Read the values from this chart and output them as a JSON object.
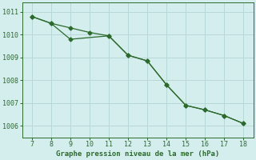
{
  "line1_x": [
    7,
    8,
    9,
    10,
    11,
    12,
    13,
    14,
    15,
    16,
    17,
    18
  ],
  "line1_y": [
    1010.8,
    1010.5,
    1010.3,
    1010.1,
    1009.95,
    1009.1,
    1008.85,
    1007.8,
    1006.9,
    1006.7,
    1006.45,
    1006.1
  ],
  "line2_x": [
    7,
    8,
    9,
    11,
    12,
    13,
    14,
    15,
    16,
    17,
    18
  ],
  "line2_y": [
    1010.8,
    1010.5,
    1009.8,
    1009.95,
    1009.1,
    1008.85,
    1007.8,
    1006.9,
    1006.7,
    1006.45,
    1006.1
  ],
  "line_color": "#2d6a2d",
  "bg_color": "#d4eeee",
  "grid_color": "#b8d8d8",
  "xlabel": "Graphe pression niveau de la mer (hPa)",
  "xlabel_color": "#2d6a2d",
  "tick_color": "#2d6a2d",
  "xlim": [
    6.5,
    18.5
  ],
  "ylim": [
    1005.5,
    1011.4
  ],
  "xticks": [
    7,
    8,
    9,
    10,
    11,
    12,
    13,
    14,
    15,
    16,
    17,
    18
  ],
  "yticks": [
    1006,
    1007,
    1008,
    1009,
    1010,
    1011
  ],
  "marker": "D",
  "marker_size": 2.5,
  "line_width": 0.9
}
